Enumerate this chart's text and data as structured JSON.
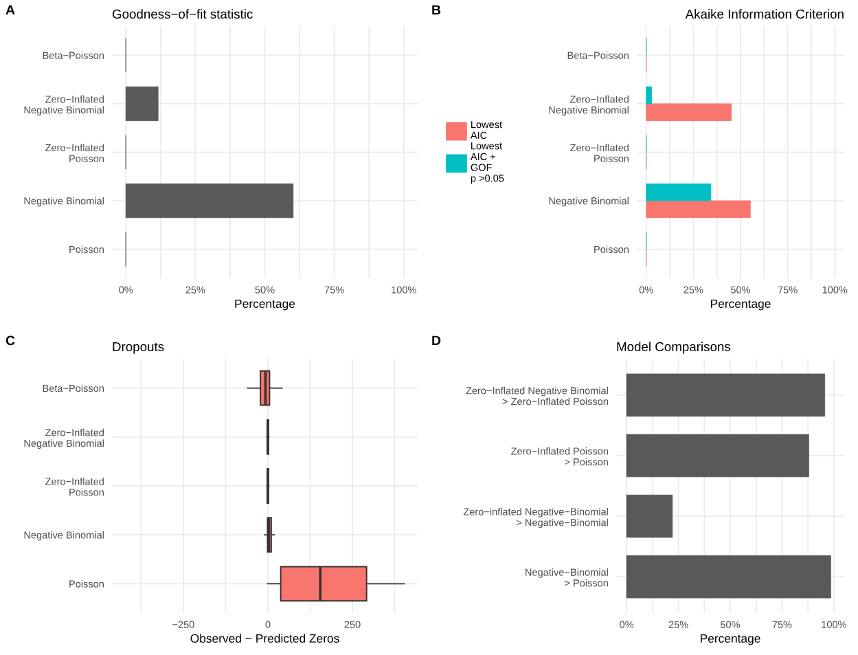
{
  "chart_data": [
    {
      "type": "bar",
      "orientation": "horizontal",
      "title": "Goodness−of−fit statistic",
      "xlabel": "Percentage",
      "annotations": [
        "A"
      ],
      "categories": [
        "Beta−Poisson",
        "Zero−Inflated\nNegative Binomial",
        "Zero−Inflated\nPoisson",
        "Negative Binomial",
        "Poisson"
      ],
      "values": [
        0,
        11.6,
        0,
        60.2,
        0
      ],
      "color": "#595959",
      "xlim": [
        -5,
        105
      ],
      "xticks": [
        {
          "value": 0,
          "label": "0%"
        },
        {
          "value": 12.5,
          "label": null
        },
        {
          "value": 25,
          "label": "25%"
        },
        {
          "value": 37.5,
          "label": null
        },
        {
          "value": 50,
          "label": "50%"
        },
        {
          "value": 62.5,
          "label": null
        },
        {
          "value": 75,
          "label": "75%"
        },
        {
          "value": 87.5,
          "label": null
        },
        {
          "value": 100,
          "label": "100%"
        }
      ],
      "grid": true,
      "legend": false
    },
    {
      "type": "bar",
      "orientation": "horizontal",
      "title": "Akaike Information Criterion",
      "xlabel": "Percentage",
      "annotations": [
        "B"
      ],
      "categories": [
        "Beta−Poisson",
        "Zero−Inflated\nNegative Binomial",
        "Zero−Inflated\nPoisson",
        "Negative Binomial",
        "Poisson"
      ],
      "series": [
        {
          "name": "Lowest\nAIC",
          "color": "#f8766d",
          "values": [
            0,
            45.1,
            0,
            55.2,
            0
          ]
        },
        {
          "name": "Lowest\nAIC +\nGOF\np >0.05",
          "color": "#00bfc4",
          "values": [
            0,
            2.9,
            0,
            34.3,
            0
          ]
        }
      ],
      "xlim": [
        -5,
        105
      ],
      "xticks": [
        {
          "value": 0,
          "label": "0%"
        },
        {
          "value": 12.5,
          "label": null
        },
        {
          "value": 25,
          "label": "25%"
        },
        {
          "value": 37.5,
          "label": null
        },
        {
          "value": 50,
          "label": "50%"
        },
        {
          "value": 62.5,
          "label": null
        },
        {
          "value": 75,
          "label": "75%"
        },
        {
          "value": 87.5,
          "label": null
        },
        {
          "value": 100,
          "label": "100%"
        }
      ],
      "grid": true,
      "legend": "left"
    },
    {
      "type": "box",
      "orientation": "horizontal",
      "title": "Dropouts",
      "xlabel": "Observed − Predicted Zeros",
      "annotations": [
        "C"
      ],
      "categories": [
        "Beta−Poisson",
        "Zero−Inflated\nNegative Binomial",
        "Zero−Inflated\nPoisson",
        "Negative Binomial",
        "Poisson"
      ],
      "color": "#f8766d",
      "boxes": [
        {
          "low": -60,
          "q1": -22,
          "median": -7,
          "q3": 5,
          "high": 42
        },
        {
          "low": -3,
          "q1": -2,
          "median": 0,
          "q3": 2,
          "high": 3
        },
        {
          "low": -3,
          "q1": -2,
          "median": 0,
          "q3": 2,
          "high": 3
        },
        {
          "low": -10,
          "q1": -1,
          "median": 3,
          "q3": 10,
          "high": 19
        },
        {
          "low": -1,
          "q1": 38,
          "median": 155,
          "q3": 292,
          "high": 403
        }
      ],
      "xlim": [
        -461,
        443
      ],
      "xticks": [
        {
          "value": -375,
          "label": null
        },
        {
          "value": -250,
          "label": "−250"
        },
        {
          "value": -125,
          "label": null
        },
        0,
        {
          "value": 125,
          "label": null
        },
        250,
        {
          "value": 375,
          "label": null
        }
      ],
      "grid": true,
      "legend": false
    },
    {
      "type": "bar",
      "orientation": "horizontal",
      "title": "Model Comparisons",
      "xlabel": "Percentage",
      "annotations": [
        "D"
      ],
      "categories": [
        "Zero−Inflated Negative Binomial\n> Zero−Inflated Poisson",
        "Zero−Inflated Poisson\n> Poisson",
        "Zero−inflated Negative−Binomial\n> Negative−Binomial",
        "Negative−Binomial\n> Poisson"
      ],
      "values": [
        95.6,
        87.9,
        22.1,
        98.5
      ],
      "color": "#595959",
      "xlim": [
        -5,
        105
      ],
      "xticks": [
        {
          "value": 0,
          "label": "0%"
        },
        {
          "value": 12.5,
          "label": null
        },
        {
          "value": 25,
          "label": "25%"
        },
        {
          "value": 37.5,
          "label": null
        },
        {
          "value": 50,
          "label": "50%"
        },
        {
          "value": 62.5,
          "label": null
        },
        {
          "value": 75,
          "label": "75%"
        },
        {
          "value": 87.5,
          "label": null
        },
        {
          "value": 100,
          "label": "100%"
        }
      ],
      "grid": true,
      "legend": false
    }
  ]
}
